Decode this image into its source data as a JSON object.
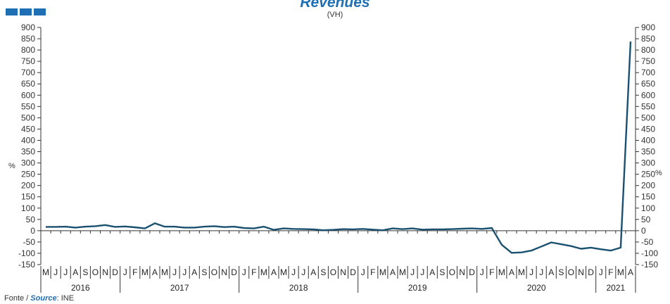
{
  "chart_data": {
    "type": "line",
    "title": "Revenues",
    "subtitle": "(VH)",
    "ylabel": "%",
    "ylim": [
      -150,
      900
    ],
    "yticks": [
      -150,
      -100,
      -50,
      0,
      50,
      100,
      150,
      200,
      250,
      300,
      350,
      400,
      450,
      500,
      550,
      600,
      650,
      700,
      750,
      800,
      850,
      900
    ],
    "grid": false,
    "legend": "none",
    "colors": {
      "line": "#1a5170",
      "zero_line": "#333333",
      "axis": "#333333"
    },
    "month_labels": [
      "M",
      "J",
      "J",
      "A",
      "S",
      "O",
      "N",
      "D",
      "J",
      "F",
      "M",
      "A",
      "M",
      "J",
      "J",
      "A",
      "S",
      "O",
      "N",
      "D",
      "J",
      "F",
      "M",
      "A",
      "M",
      "J",
      "J",
      "A",
      "S",
      "O",
      "N",
      "D",
      "J",
      "F",
      "M",
      "A",
      "M",
      "J",
      "J",
      "A",
      "S",
      "O",
      "N",
      "D",
      "J",
      "F",
      "M",
      "A",
      "M",
      "J",
      "J",
      "A",
      "S",
      "O",
      "N",
      "D",
      "J",
      "F",
      "M",
      "A"
    ],
    "years": [
      {
        "label": "2016",
        "start": 0,
        "count": 8
      },
      {
        "label": "2017",
        "start": 8,
        "count": 12
      },
      {
        "label": "2018",
        "start": 20,
        "count": 12
      },
      {
        "label": "2019",
        "start": 32,
        "count": 12
      },
      {
        "label": "2020",
        "start": 44,
        "count": 12
      },
      {
        "label": "2021",
        "start": 56,
        "count": 4
      }
    ],
    "series": [
      {
        "values": [
          17,
          17,
          18,
          14,
          18,
          20,
          25,
          17,
          19,
          15,
          10,
          33,
          18,
          18,
          14,
          14,
          18,
          20,
          16,
          18,
          12,
          10,
          18,
          4,
          10,
          8,
          7,
          6,
          2,
          4,
          7,
          6,
          8,
          5,
          2,
          10,
          7,
          10,
          5,
          6,
          6,
          7,
          9,
          10,
          8,
          12,
          -62,
          -98,
          -96,
          -88,
          -70,
          -52,
          -60,
          -68,
          -80,
          -75,
          -82,
          -88,
          -75,
          838
        ]
      }
    ]
  },
  "source": {
    "prefix": "Fonte / ",
    "label": "Source",
    "suffix": ": INE"
  }
}
